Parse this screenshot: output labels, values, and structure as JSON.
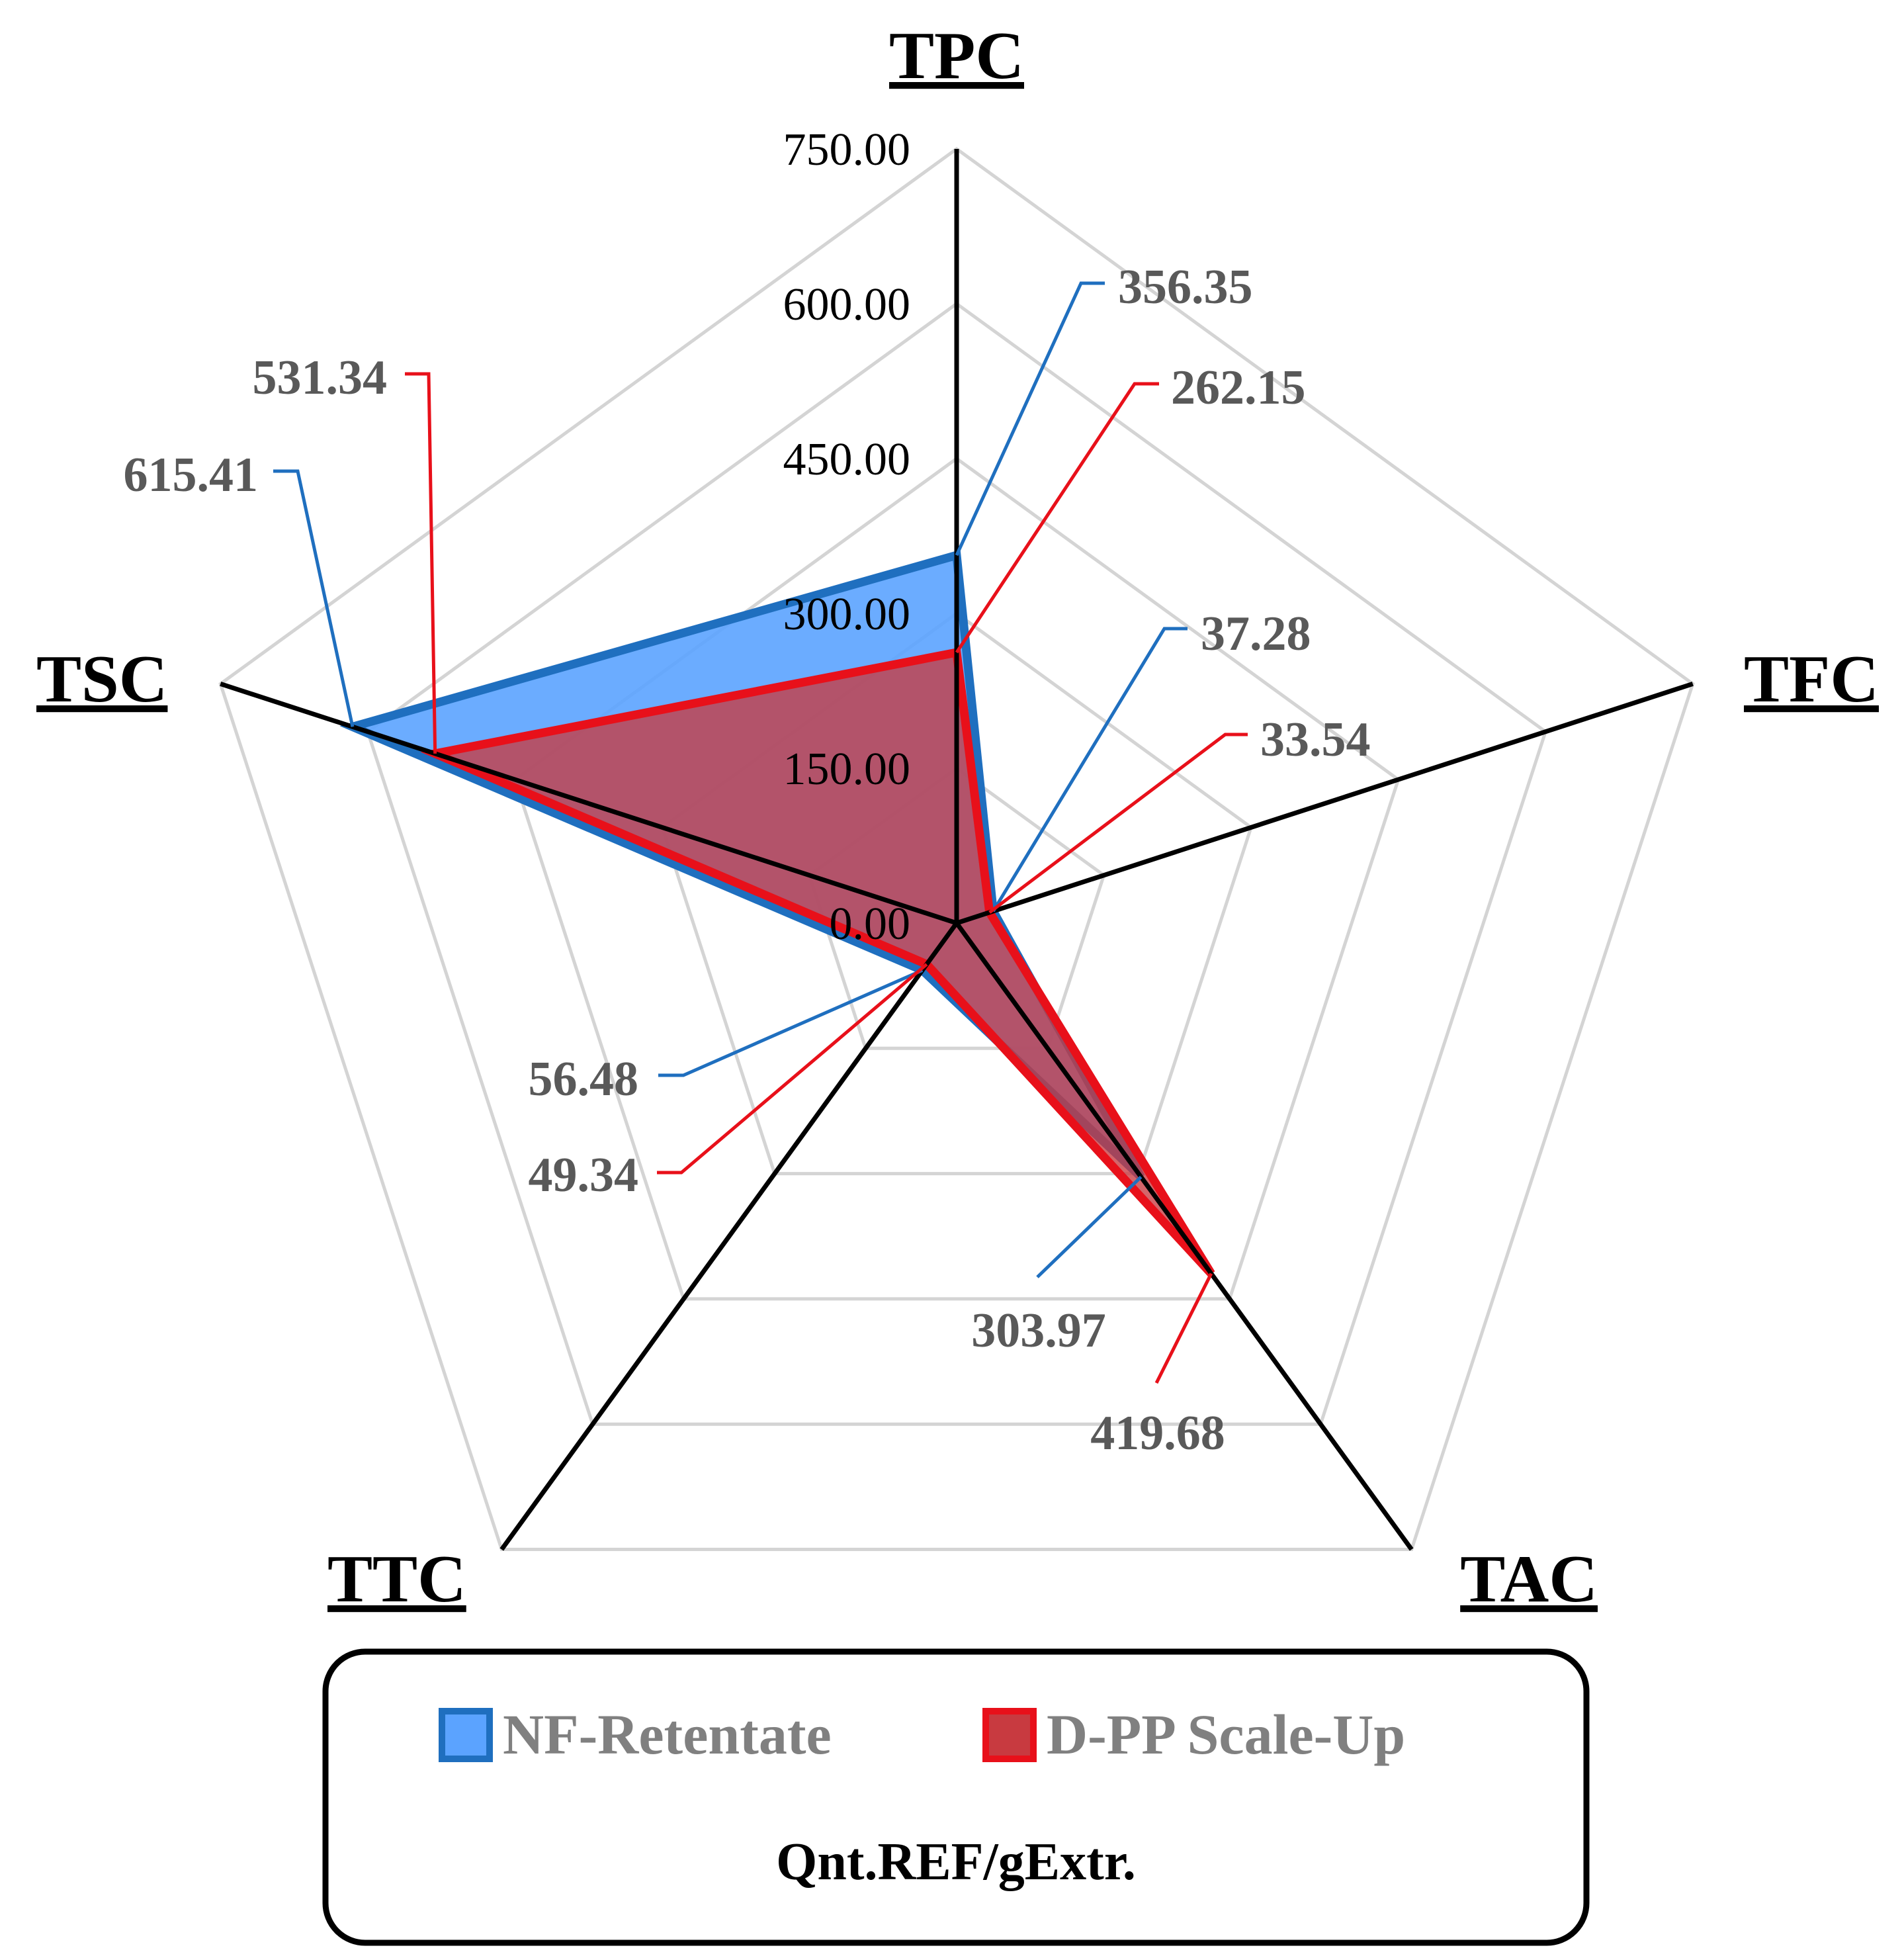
{
  "chart_data": {
    "type": "radar",
    "axes": [
      "TPC",
      "TFC",
      "TAC",
      "TTC",
      "TSC"
    ],
    "rlim": [
      0,
      750
    ],
    "ticks": [
      "0.00",
      "150.00",
      "300.00",
      "450.00",
      "600.00",
      "750.00"
    ],
    "tick_values": [
      0,
      150,
      300,
      450,
      600,
      750
    ],
    "grid": true,
    "legend_position": "bottom",
    "unit": "Qnt.REF/gExtr.",
    "series": [
      {
        "name": "NF-Retentate",
        "values": [
          356.35,
          37.28,
          303.97,
          56.48,
          615.41
        ],
        "labels": [
          "356.35",
          "37.28",
          "303.97",
          "56.48",
          "615.41"
        ],
        "color": "#1f6fbf",
        "fill": "#5ba3ff"
      },
      {
        "name": "D-PP Scale-Up",
        "values": [
          262.15,
          33.54,
          419.68,
          49.34,
          531.34
        ],
        "labels": [
          "262.15",
          "33.54",
          "419.68",
          "49.34",
          "531.34"
        ],
        "color": "#e8101a",
        "fill": "#c83a40"
      }
    ]
  }
}
